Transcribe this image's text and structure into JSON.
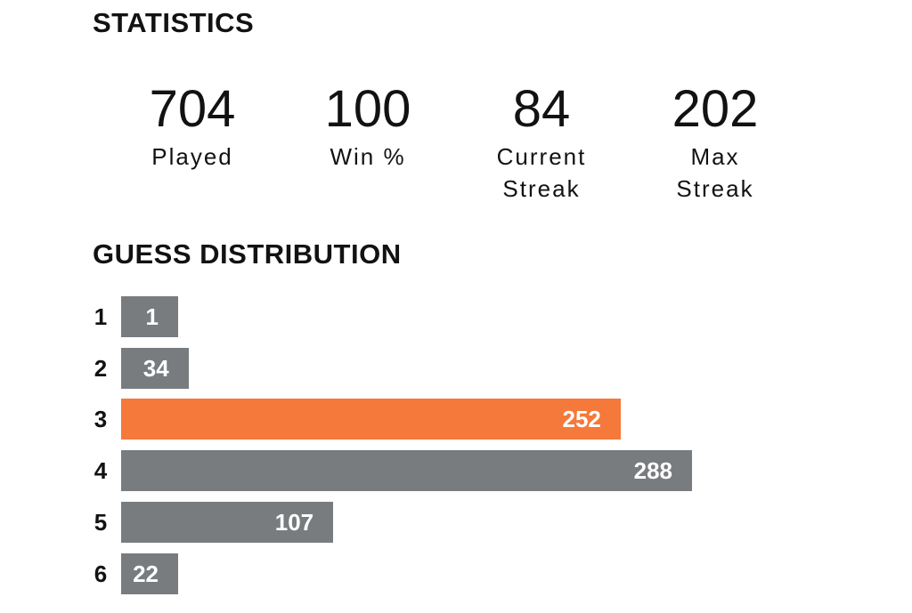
{
  "header": {
    "title": "STATISTICS"
  },
  "stats": [
    {
      "value": 704,
      "label": "Played"
    },
    {
      "value": 100,
      "label": "Win %"
    },
    {
      "value": 84,
      "label": "Current Streak"
    },
    {
      "value": 202,
      "label": "Max Streak"
    }
  ],
  "distribution": {
    "title": "GUESS DISTRIBUTION",
    "categories": [
      "1",
      "2",
      "3",
      "4",
      "5",
      "6"
    ],
    "values": [
      1,
      34,
      252,
      288,
      107,
      22
    ],
    "color": "#787c7e",
    "highlight_color": "#f5793a",
    "highlight_index": 2
  }
}
